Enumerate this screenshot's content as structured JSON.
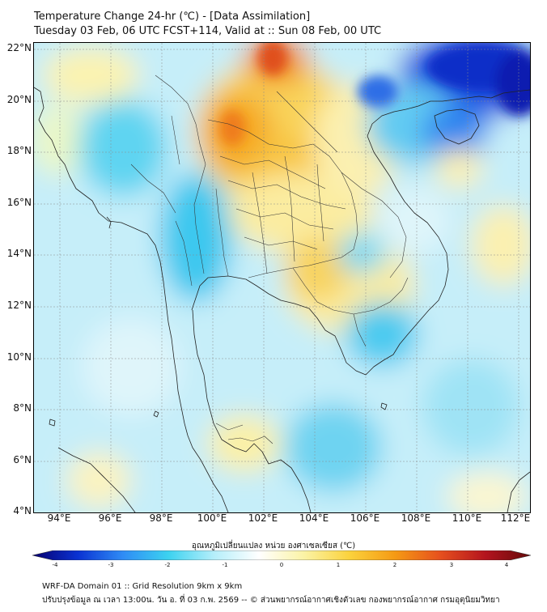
{
  "header": {
    "title_line1": "Temperature Change 24-hr (℃) - [Data Assimilation]",
    "title_line2": "Tuesday 03 Feb, 06 UTC FCST+114, Valid at :: Sun 08 Feb, 00 UTC"
  },
  "map": {
    "lat_labels": [
      "22°N",
      "20°N",
      "18°N",
      "16°N",
      "14°N",
      "12°N",
      "10°N",
      "8°N",
      "6°N",
      "4°N"
    ],
    "lon_labels": [
      "94°E",
      "96°E",
      "98°E",
      "100°E",
      "102°E",
      "104°E",
      "106°E",
      "108°E",
      "110°E",
      "112°E"
    ],
    "lat_range": [
      4,
      22.2
    ],
    "lon_range": [
      93,
      112.5
    ]
  },
  "colorbar": {
    "title": "อุณหภูมิเปลี่ยนแปลง หน่วย องศาเซลเซียส (℃)",
    "ticks": [
      "-4",
      "-3",
      "-2",
      "-1",
      "0",
      "1",
      "2",
      "3",
      "4"
    ],
    "range": [
      -4,
      4
    ],
    "colors": [
      "#08006e",
      "#0a32d2",
      "#2f8cf5",
      "#3cd2f0",
      "#b4eefa",
      "#ffffff",
      "#fbf3a5",
      "#fbd23c",
      "#f59a14",
      "#e6501e",
      "#b4141e",
      "#640a0a"
    ]
  },
  "footer": {
    "line1": "WRF-DA Domain 01 :: Grid Resolution 9km x 9km",
    "line2": "ปรับปรุงข้อมูล ณ เวลา 13:00น. วัน อ. ที่ 03 ก.พ. 2569 -- © ส่วนพยากรณ์อากาศเชิงตัวเลข กองพยากรณ์อากาศ กรมอุตุนิยมวิทยา"
  }
}
